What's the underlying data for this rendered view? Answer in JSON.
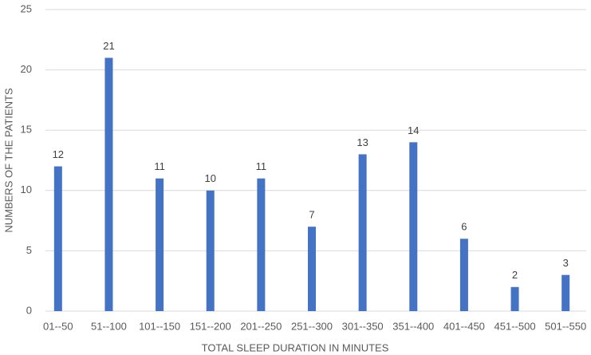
{
  "chart_data": {
    "type": "bar",
    "x_label": "TOTAL SLEEP DURATION IN MINUTES",
    "y_label": "NUMBERS OF THE PATIENTS",
    "categories": [
      "01--50",
      "51--100",
      "101--150",
      "151--200",
      "201--250",
      "251--300",
      "301--350",
      "351--400",
      "401--450",
      "451--500",
      "501--550"
    ],
    "values": [
      12,
      21,
      11,
      10,
      11,
      7,
      13,
      14,
      6,
      2,
      3
    ],
    "color": "#4472c4",
    "ylim": [
      0,
      25
    ],
    "yticks": [
      0,
      5,
      10,
      15,
      20,
      25
    ],
    "grid": true
  }
}
